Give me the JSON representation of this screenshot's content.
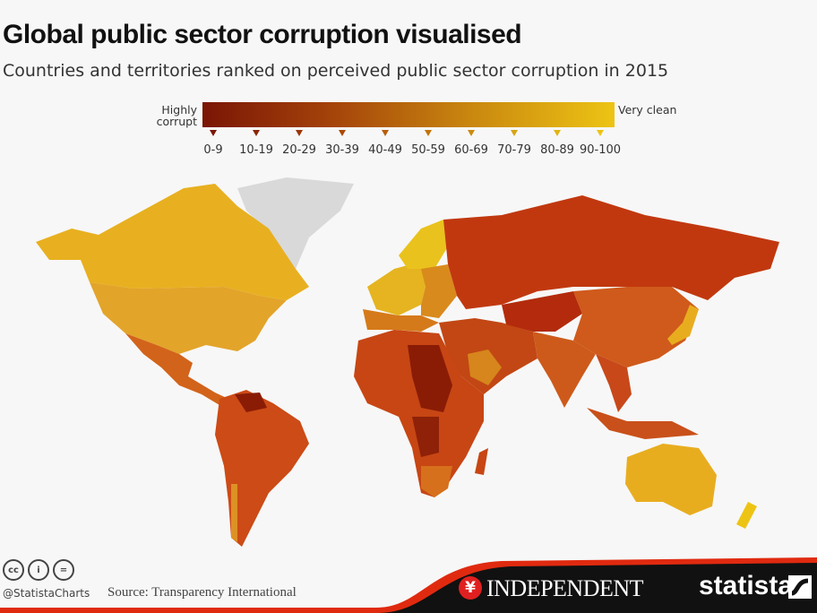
{
  "header": {
    "title": "Global public sector corruption visualised",
    "subtitle": "Countries and territories ranked on perceived public sector corruption in 2015"
  },
  "legend": {
    "left_label": "Highly corrupt",
    "right_label": "Very clean",
    "bins": [
      {
        "label": "0-9",
        "color": "#7a1505"
      },
      {
        "label": "10-19",
        "color": "#8a2406"
      },
      {
        "label": "20-29",
        "color": "#9b3608"
      },
      {
        "label": "30-39",
        "color": "#ab480a"
      },
      {
        "label": "40-49",
        "color": "#b65d0c"
      },
      {
        "label": "50-59",
        "color": "#c1740d"
      },
      {
        "label": "60-69",
        "color": "#cb8b0f"
      },
      {
        "label": "70-79",
        "color": "#d7a311"
      },
      {
        "label": "80-89",
        "color": "#e2b413"
      },
      {
        "label": "90-100",
        "color": "#edc414"
      }
    ],
    "no_data_color": "#d9d9d9"
  },
  "footer": {
    "handle": "@StatistaCharts",
    "source": "Source: Transparency International",
    "cc_icons": [
      "cc",
      "by",
      "nd"
    ],
    "partner_logo": "INDEPENDENT",
    "brand_logo": "statista"
  }
}
